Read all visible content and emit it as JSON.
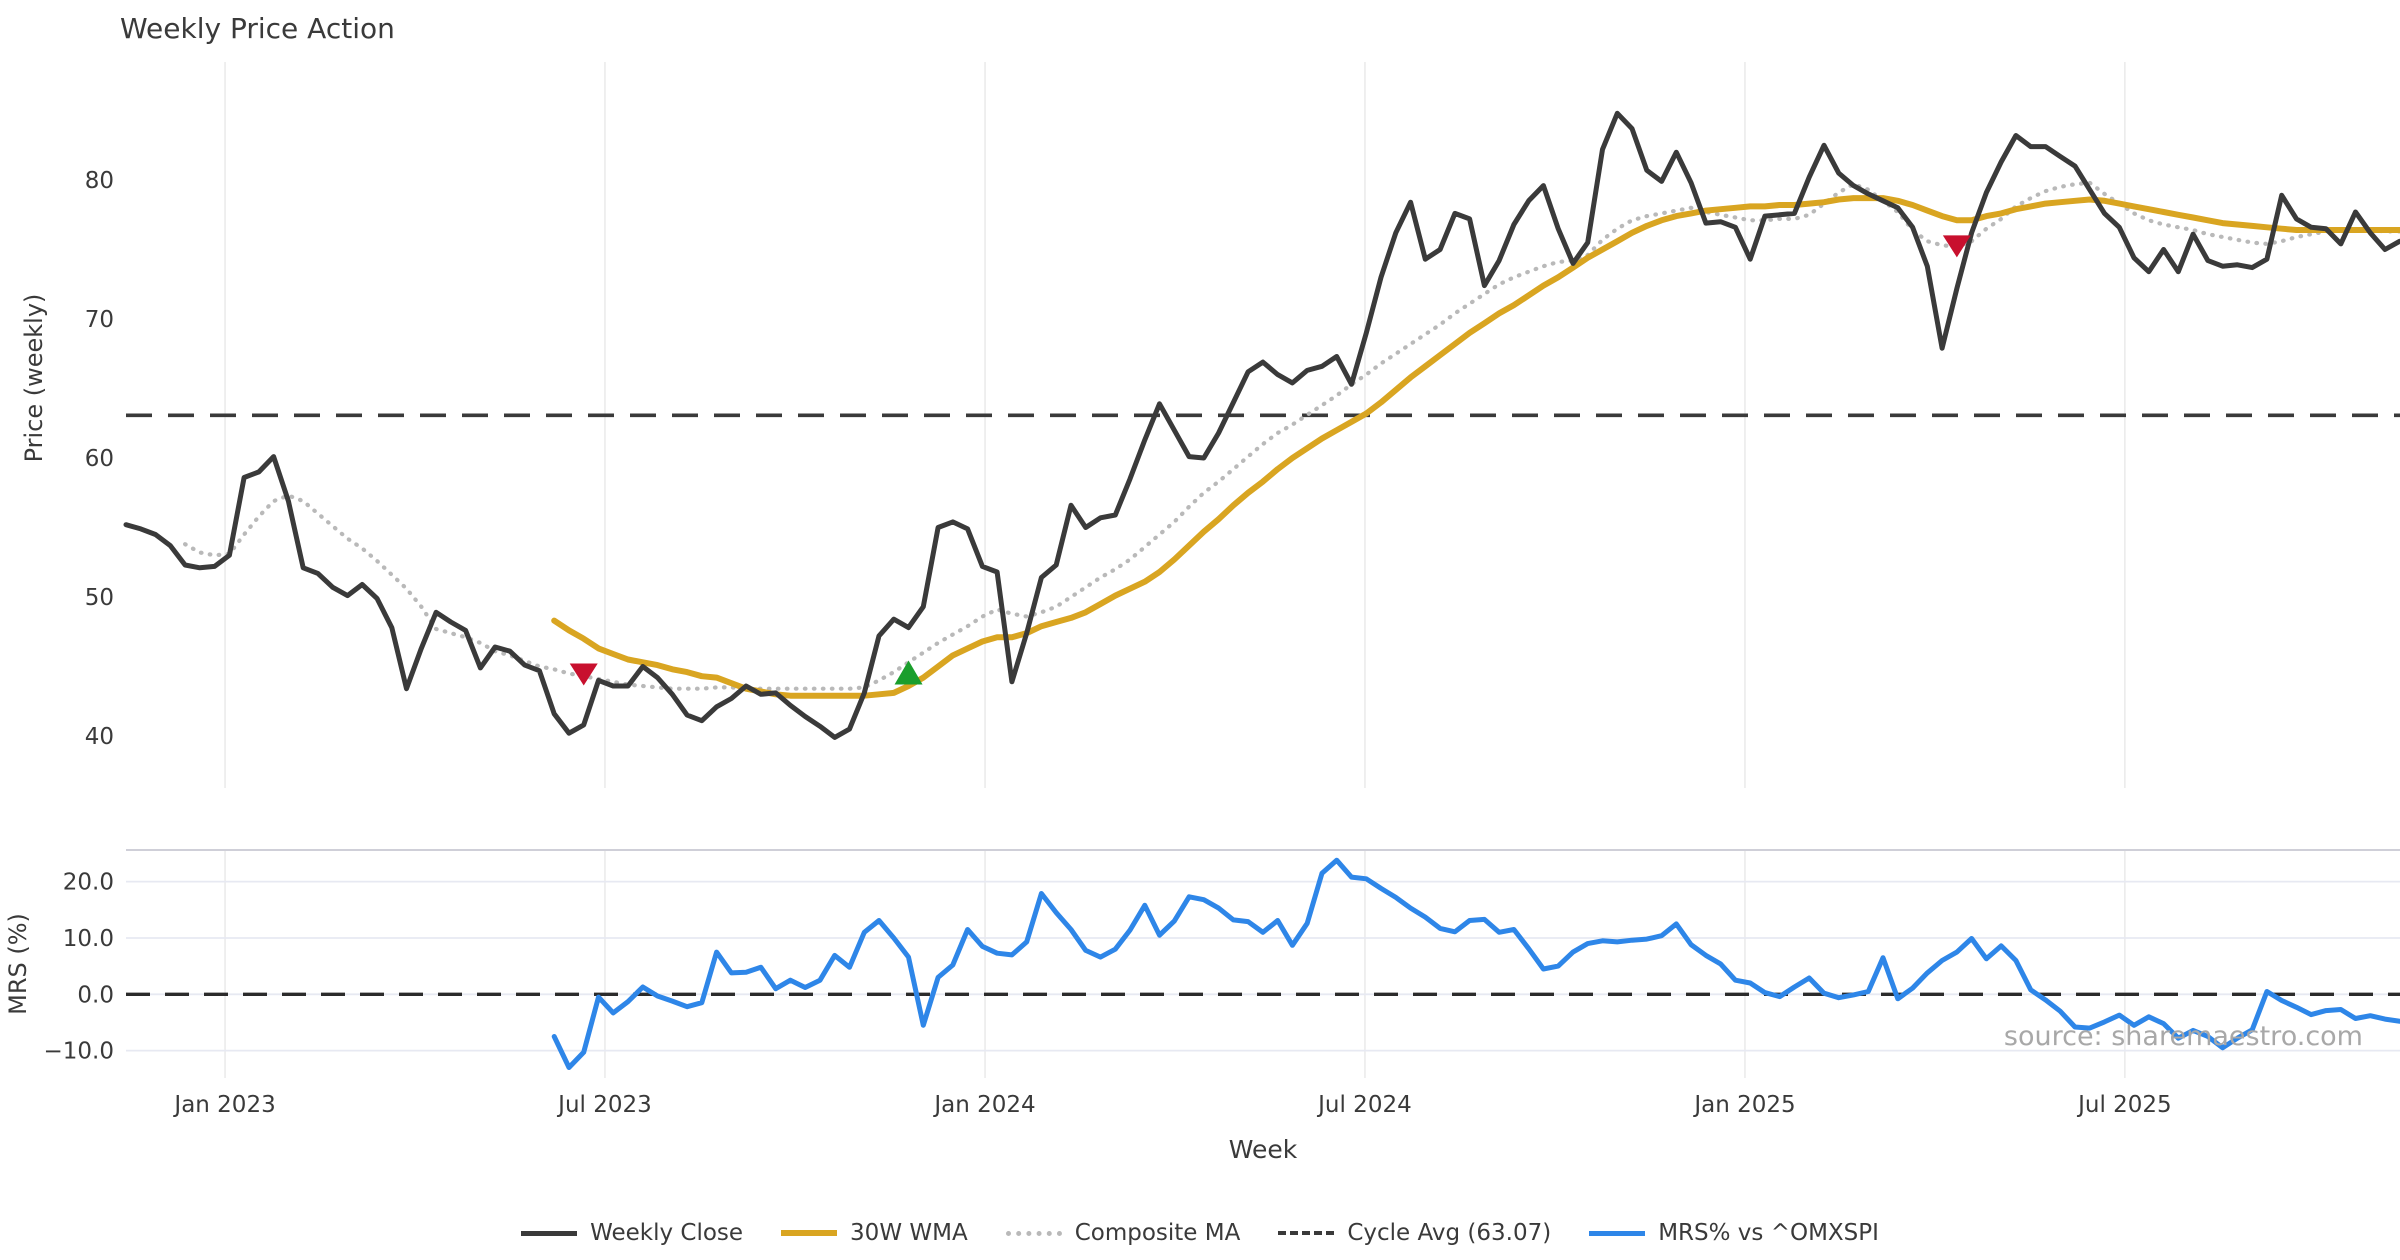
{
  "header": {
    "title": "Weekly Price Action"
  },
  "source_note": "source: sharemaestro.com",
  "chart_data": {
    "type": "line",
    "title": "Weekly Price Action",
    "xlabel": "Week",
    "grid": "vertical in both panels, horizontal only in MRS panel",
    "legend_position": "bottom center",
    "x_ticks": [
      {
        "week": 6.71,
        "label": "Jan 2023"
      },
      {
        "week": 32.44,
        "label": "Jul 2023"
      },
      {
        "week": 58.18,
        "label": "Jan 2024"
      },
      {
        "week": 83.91,
        "label": "Jul 2024"
      },
      {
        "week": 109.65,
        "label": "Jan 2025"
      },
      {
        "week": 135.38,
        "label": "Jul 2025"
      }
    ],
    "panels": [
      {
        "id": "price",
        "ylabel": "Price (weekly)",
        "ylim": [
          37.7,
          88.2
        ],
        "yticks": [
          40,
          50,
          60,
          70,
          80
        ],
        "ytick_labels": [
          "40",
          "50",
          "60",
          "70",
          "80"
        ],
        "hline": {
          "name": "Cycle Avg (63.07)",
          "value": 63.07,
          "color": "#3A3A3A",
          "style": "dashed"
        },
        "markers": [
          {
            "shape": "triangle-down",
            "color": "#C8102E",
            "week": 31,
            "value": 44.5
          },
          {
            "shape": "triangle-up",
            "color": "#1A9E2C",
            "week": 53,
            "value": 44.5
          },
          {
            "shape": "triangle-down",
            "color": "#C8102E",
            "week": 124,
            "value": 75.3
          }
        ],
        "series": [
          {
            "name": "Weekly Close",
            "color": "#3A3A3A",
            "style": "solid",
            "width": 5,
            "start_week": 0,
            "values": [
              55.2,
              54.9,
              54.5,
              53.7,
              52.3,
              52.1,
              52.2,
              53.0,
              58.6,
              59.0,
              60.1,
              56.9,
              52.1,
              51.7,
              50.7,
              50.1,
              50.9,
              49.9,
              47.8,
              43.4,
              46.3,
              48.9,
              48.2,
              47.6,
              44.9,
              46.4,
              46.1,
              45.1,
              44.7,
              41.6,
              40.2,
              40.8,
              44.0,
              43.6,
              43.6,
              45.0,
              44.2,
              43.0,
              41.5,
              41.1,
              42.1,
              42.7,
              43.6,
              43.0,
              43.1,
              42.2,
              41.4,
              40.7,
              39.9,
              40.5,
              43.1,
              47.2,
              48.4,
              47.8,
              49.3,
              55.0,
              55.4,
              54.9,
              52.2,
              51.8,
              43.9,
              47.4,
              51.4,
              52.3,
              56.6,
              55.0,
              55.7,
              55.9,
              58.5,
              61.3,
              63.9,
              62.0,
              60.1,
              60.0,
              61.8,
              64.0,
              66.2,
              66.9,
              66.0,
              65.4,
              66.3,
              66.6,
              67.3,
              65.3,
              69.0,
              73.0,
              76.2,
              78.4,
              74.3,
              75.0,
              77.6,
              77.2,
              72.4,
              74.2,
              76.8,
              78.5,
              79.6,
              76.5,
              74.0,
              75.5,
              82.2,
              84.8,
              83.7,
              80.7,
              79.9,
              82.0,
              79.8,
              76.9,
              77.0,
              76.6,
              74.3,
              77.4,
              77.5,
              77.6,
              80.2,
              82.5,
              80.5,
              79.6,
              79.0,
              78.5,
              78.0,
              76.6,
              73.8,
              67.9,
              72.2,
              76.2,
              79.1,
              81.3,
              83.2,
              82.4,
              82.4,
              81.7,
              81.0,
              79.3,
              77.6,
              76.6,
              74.4,
              73.4,
              75.0,
              73.4,
              76.1,
              74.2,
              73.8,
              73.9,
              73.7,
              74.3,
              78.9,
              77.2,
              76.6,
              76.5,
              75.4,
              77.7,
              76.2,
              75.0,
              75.6
            ]
          },
          {
            "name": "30W WMA",
            "color": "#D9A521",
            "style": "solid",
            "width": 6,
            "start_week": 29,
            "values": [
              48.3,
              47.6,
              47.0,
              46.3,
              45.9,
              45.5,
              45.3,
              45.1,
              44.8,
              44.6,
              44.3,
              44.2,
              43.8,
              43.4,
              43.2,
              43.0,
              42.9,
              42.9,
              42.9,
              42.9,
              42.9,
              42.9,
              43.0,
              43.1,
              43.6,
              44.2,
              45.0,
              45.8,
              46.3,
              46.8,
              47.1,
              47.1,
              47.4,
              47.9,
              48.2,
              48.5,
              48.9,
              49.5,
              50.1,
              50.6,
              51.1,
              51.8,
              52.7,
              53.7,
              54.7,
              55.6,
              56.6,
              57.5,
              58.3,
              59.2,
              60.0,
              60.7,
              61.4,
              62.0,
              62.6,
              63.2,
              64.0,
              64.9,
              65.8,
              66.6,
              67.4,
              68.2,
              69.0,
              69.7,
              70.4,
              71.0,
              71.7,
              72.4,
              73.0,
              73.7,
              74.4,
              75.0,
              75.6,
              76.2,
              76.7,
              77.1,
              77.4,
              77.6,
              77.8,
              77.9,
              78.0,
              78.1,
              78.1,
              78.2,
              78.2,
              78.3,
              78.4,
              78.6,
              78.7,
              78.7,
              78.7,
              78.5,
              78.2,
              77.8,
              77.4,
              77.1,
              77.1,
              77.4,
              77.6,
              77.9,
              78.1,
              78.3,
              78.4,
              78.5,
              78.6,
              78.5,
              78.3,
              78.1,
              77.9,
              77.7,
              77.5,
              77.3,
              77.1,
              76.9,
              76.8,
              76.7,
              76.6,
              76.5,
              76.4,
              76.4,
              76.4,
              76.4,
              76.4,
              76.4,
              76.4,
              76.4
            ]
          },
          {
            "name": "Composite MA",
            "color": "#B9B9B9",
            "style": "dotted",
            "width": 4.2,
            "start_week": 4,
            "values": [
              53.8,
              53.2,
              53.0,
              53.1,
              54.5,
              55.8,
              56.9,
              57.3,
              56.9,
              56.0,
              55.1,
              54.2,
              53.5,
              52.6,
              51.6,
              50.6,
              49.3,
              47.7,
              47.4,
              47.1,
              46.7,
              46.1,
              45.8,
              45.4,
              45.0,
              44.8,
              44.5,
              44.3,
              44.1,
              43.9,
              43.7,
              43.6,
              43.5,
              43.4,
              43.4,
              43.4,
              43.5,
              43.5,
              43.4,
              43.4,
              43.4,
              43.4,
              43.4,
              43.4,
              43.4,
              43.4,
              43.5,
              44.0,
              44.6,
              45.3,
              46.0,
              46.7,
              47.3,
              47.9,
              48.6,
              49.1,
              48.8,
              48.6,
              48.9,
              49.3,
              50.0,
              50.7,
              51.4,
              52.0,
              52.7,
              53.6,
              54.5,
              55.4,
              56.5,
              57.5,
              58.3,
              59.2,
              60.1,
              61.0,
              61.8,
              62.4,
              63.1,
              63.8,
              64.5,
              65.3,
              66.0,
              66.8,
              67.5,
              68.2,
              68.9,
              69.6,
              70.4,
              71.1,
              71.8,
              72.5,
              73.0,
              73.4,
              73.8,
              74.1,
              74.2,
              74.6,
              75.7,
              76.5,
              77.1,
              77.4,
              77.6,
              77.8,
              78.0,
              77.7,
              77.5,
              77.3,
              77.1,
              77.1,
              77.2,
              77.2,
              77.5,
              78.3,
              79.1,
              79.7,
              79.3,
              78.5,
              77.7,
              76.4,
              75.6,
              75.3,
              75.2,
              75.6,
              76.5,
              77.2,
              78.1,
              78.7,
              79.2,
              79.5,
              79.7,
              79.8,
              79.0,
              78.3,
              77.6,
              77.1,
              76.8,
              76.6,
              76.4,
              76.1,
              75.9,
              75.7,
              75.5,
              75.4,
              75.6,
              75.9,
              76.1,
              76.3,
              76.4,
              76.4,
              76.4,
              76.3,
              76.3
            ]
          }
        ]
      },
      {
        "id": "mrs",
        "ylabel": "MRS (%)",
        "ylim": [
          -14.9,
          25.6
        ],
        "yticks": [
          20,
          10,
          0,
          -10
        ],
        "ytick_labels": [
          "20.0",
          "10.0",
          "0.0",
          "−10.0"
        ],
        "hline": {
          "name": "zero line",
          "value": 0,
          "color": "#2B2B2B",
          "style": "dashed"
        },
        "series": [
          {
            "name": "MRS% vs ^OMXSPI",
            "color": "#2E86E8",
            "style": "solid",
            "width": 5,
            "start_week": 29,
            "values": [
              -7.5,
              -13.0,
              -10.3,
              -0.5,
              -3.3,
              -1.3,
              1.3,
              -0.3,
              -1.2,
              -2.2,
              -1.5,
              7.5,
              3.8,
              3.9,
              4.8,
              1.0,
              2.5,
              1.2,
              2.5,
              6.9,
              4.8,
              11.0,
              13.1,
              10.0,
              6.6,
              -5.5,
              3.0,
              5.2,
              11.5,
              8.5,
              7.3,
              7.0,
              9.3,
              17.9,
              14.5,
              11.5,
              7.8,
              6.6,
              8.0,
              11.4,
              15.8,
              10.5,
              13.0,
              17.3,
              16.8,
              15.3,
              13.2,
              12.9,
              11.0,
              13.1,
              8.7,
              12.6,
              21.5,
              23.8,
              20.8,
              20.5,
              18.8,
              17.2,
              15.3,
              13.7,
              11.7,
              11.1,
              13.1,
              13.3,
              11.0,
              11.5,
              8.1,
              4.5,
              5.0,
              7.5,
              9.0,
              9.5,
              9.3,
              9.6,
              9.8,
              10.4,
              12.5,
              8.8,
              6.9,
              5.4,
              2.5,
              2.0,
              0.3,
              -0.4,
              1.3,
              2.9,
              0.2,
              -0.6,
              -0.1,
              0.5,
              6.5,
              -0.8,
              1.1,
              3.8,
              6.0,
              7.5,
              9.9,
              6.3,
              8.6,
              6.0,
              0.8,
              -1.0,
              -3.0,
              -5.8,
              -6.0,
              -4.9,
              -3.7,
              -5.5,
              -4.0,
              -5.2,
              -7.8,
              -6.4,
              -7.5,
              -9.5,
              -7.8,
              -6.3,
              0.5,
              -1.1,
              -2.3,
              -3.6,
              -2.9,
              -2.7,
              -4.3,
              -3.8,
              -4.4,
              -4.8
            ]
          }
        ]
      }
    ],
    "legend": {
      "items": [
        {
          "label": "Weekly Close"
        },
        {
          "label": "30W WMA"
        },
        {
          "label": "Composite MA"
        },
        {
          "label": "Cycle Avg (63.07)"
        },
        {
          "label": "MRS% vs ^OMXSPI"
        }
      ]
    }
  }
}
